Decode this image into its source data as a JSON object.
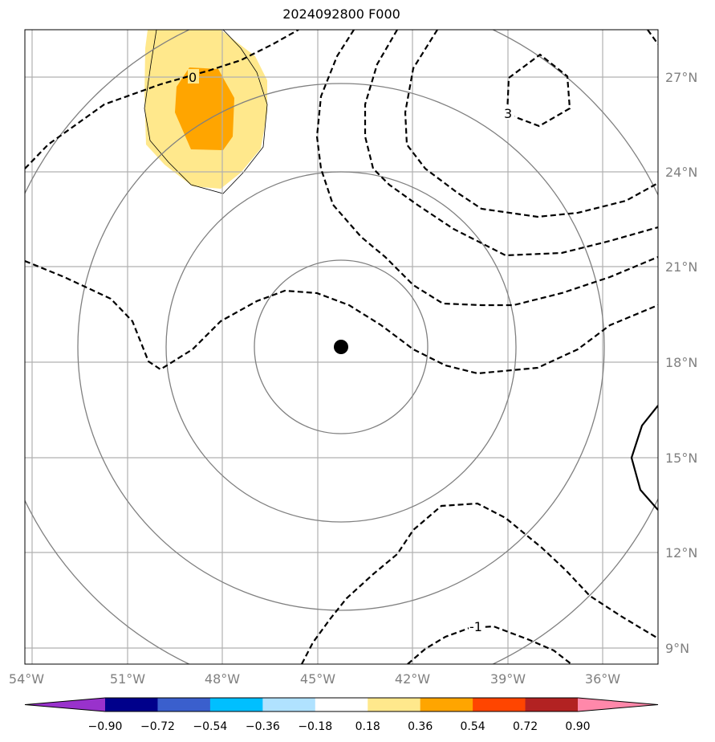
{
  "title": "2024092800 F000",
  "longitude_ticks": [
    "54°W",
    "51°W",
    "48°W",
    "45°W",
    "42°W",
    "39°W",
    "36°W"
  ],
  "latitude_ticks": [
    "27°N",
    "24°N",
    "21°N",
    "18°N",
    "15°N",
    "12°N",
    "9°N"
  ],
  "contour_labels": [
    "0",
    "3",
    "-1"
  ],
  "colorbar": {
    "tick_labels": [
      "−0.90",
      "−0.72",
      "−0.54",
      "−0.36",
      "−0.18",
      "0.18",
      "0.36",
      "0.54",
      "0.72",
      "0.90"
    ],
    "colors": [
      "#9932cc",
      "#00008b",
      "#3a5fcd",
      "#00bfff",
      "#b0e2ff",
      "#ffffff",
      "#ffe88c",
      "#ffa500",
      "#ff4500",
      "#b22222",
      "#ff88aa"
    ]
  },
  "colors": {
    "shade_light": "#ffe88c",
    "shade_dark": "#ffa500",
    "grid": "#b0b0b0",
    "range_rings": "#808080",
    "center_marker": "#000000"
  }
}
